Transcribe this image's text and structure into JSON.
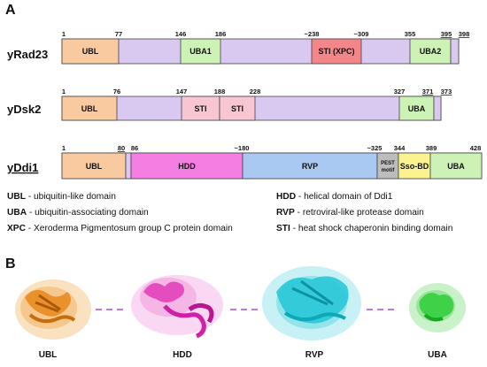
{
  "panels": {
    "a": "A",
    "b": "B"
  },
  "colors": {
    "ubl": "#f9c9a0",
    "backbone": "#d9c8ef",
    "uba": "#cdf2b5",
    "sti": "#f7c6d2",
    "sti_xpc": "#f4868a",
    "hdd": "#f57ee3",
    "rvp": "#a9c8f2",
    "pest": "#bdbdbd",
    "ssobd": "#fbf38f",
    "ubl_struct": "#e8871a",
    "hdd_struct": "#e23bb7",
    "rvp_struct": "#22c6d6",
    "uba_struct": "#2fcf3a",
    "linker": "#c07be0"
  },
  "proteins": [
    {
      "name": "yRad23",
      "underline": false,
      "positions": [
        "1",
        "77",
        "146",
        "186",
        "~238",
        "~309",
        "355",
        "395",
        "398"
      ],
      "domains": [
        "UBL",
        "UBA1",
        "STI (XPC)",
        "UBA2"
      ]
    },
    {
      "name": "yDsk2",
      "underline": false,
      "positions": [
        "1",
        "76",
        "147",
        "188",
        "228",
        "327",
        "371",
        "373"
      ],
      "domains": [
        "UBL",
        "STI",
        "STI",
        "UBA"
      ]
    },
    {
      "name": "yDdi1",
      "underline": true,
      "positions": [
        "1",
        "80",
        "86",
        "~180",
        "~325",
        "344",
        "389",
        "428"
      ],
      "domains": [
        "UBL",
        "HDD",
        "RVP",
        "PEST",
        "motif",
        "Sso-BD",
        "UBA"
      ]
    }
  ],
  "legend": [
    {
      "abbr": "UBL",
      "text": " - ubiquitin-like domain"
    },
    {
      "abbr": "UBA",
      "text": " - ubiquitin-associating domain"
    },
    {
      "abbr": "XPC",
      "text": " - Xeroderma Pigmentosum group C protein domain"
    },
    {
      "abbr": "HDD",
      "text": " - helical domain of Ddi1"
    },
    {
      "abbr": "RVP",
      "text": " - retroviral-like protease domain"
    },
    {
      "abbr": "STI",
      "text": " - heat shock chaperonin binding domain"
    }
  ],
  "structures": [
    "UBL",
    "HDD",
    "RVP",
    "UBA"
  ]
}
